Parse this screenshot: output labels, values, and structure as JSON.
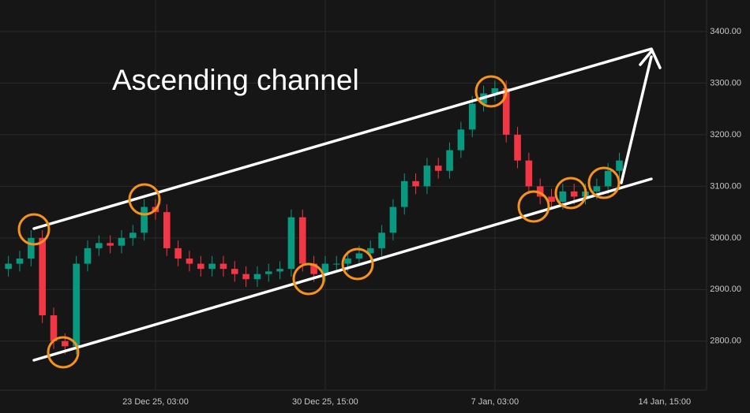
{
  "chart_data": {
    "type": "candlestick",
    "annotation": "Ascending channel",
    "categories": [
      null,
      null,
      null,
      null,
      null,
      null,
      null,
      null,
      null,
      null,
      null,
      null,
      null,
      "23 Dec 25, 03:00",
      null,
      null,
      null,
      null,
      null,
      null,
      null,
      null,
      null,
      null,
      null,
      null,
      null,
      null,
      "30 Dec 25, 15:00",
      null,
      null,
      null,
      null,
      null,
      null,
      null,
      null,
      null,
      null,
      null,
      null,
      null,
      null,
      "7 Jan, 03:00",
      null,
      null,
      null,
      null,
      null,
      null,
      null,
      null,
      null,
      null,
      null,
      null,
      null,
      null,
      "14 Jan, 15:00",
      null,
      null,
      null
    ],
    "series": {
      "up_color": "#089981",
      "down_color": "#f23645",
      "open": [
        2940,
        2950,
        2960,
        3000,
        2850,
        2800,
        2790,
        2950,
        2980,
        2990,
        2985,
        3000,
        3010,
        3060,
        3050,
        2980,
        2960,
        2950,
        2940,
        2950,
        2940,
        2930,
        2920,
        2930,
        2935,
        2940,
        3040,
        2950,
        2930,
        2950,
        2950,
        2960,
        2970,
        2980,
        3010,
        3060,
        3110,
        3100,
        3140,
        3130,
        3170,
        3210,
        3260,
        3280,
        3290,
        3200,
        3150,
        3100,
        3080,
        3070,
        3090,
        3080,
        3090,
        3100,
        3130,
        null,
        null,
        null,
        null,
        null,
        null,
        null
      ],
      "high": [
        2965,
        2975,
        3015,
        3015,
        2865,
        2815,
        2965,
        2995,
        3005,
        3005,
        3015,
        3025,
        3075,
        3075,
        3065,
        2995,
        2975,
        2965,
        2965,
        2965,
        2955,
        2945,
        2945,
        2950,
        2955,
        3055,
        3055,
        2965,
        2965,
        2965,
        2975,
        2985,
        2995,
        3025,
        3075,
        3125,
        3125,
        3155,
        3155,
        3185,
        3225,
        3275,
        3295,
        3305,
        3305,
        3215,
        3165,
        3115,
        3095,
        3105,
        3105,
        3105,
        3115,
        3145,
        3165,
        null,
        null,
        null,
        null,
        null,
        null,
        null
      ],
      "low": [
        2925,
        2935,
        2945,
        2835,
        2785,
        2775,
        2775,
        2935,
        2965,
        2970,
        2970,
        2985,
        2995,
        3035,
        2965,
        2945,
        2935,
        2925,
        2925,
        2925,
        2915,
        2905,
        2905,
        2915,
        2920,
        2925,
        2935,
        2915,
        2915,
        2935,
        2935,
        2945,
        2955,
        2965,
        2995,
        3045,
        3085,
        3085,
        3115,
        3115,
        3155,
        3195,
        3245,
        3265,
        3185,
        3135,
        3085,
        3065,
        3055,
        3055,
        3065,
        3065,
        3075,
        3085,
        3115,
        null,
        null,
        null,
        null,
        null,
        null,
        null
      ],
      "close": [
        2950,
        2960,
        3000,
        2850,
        2800,
        2790,
        2950,
        2980,
        2990,
        2985,
        3000,
        3010,
        3060,
        3050,
        2980,
        2960,
        2950,
        2940,
        2950,
        2940,
        2930,
        2920,
        2930,
        2935,
        2940,
        3040,
        2950,
        2930,
        2950,
        2950,
        2960,
        2970,
        2980,
        3010,
        3060,
        3110,
        3100,
        3140,
        3130,
        3170,
        3210,
        3260,
        3280,
        3290,
        3200,
        3150,
        3100,
        3080,
        3070,
        3090,
        3080,
        3090,
        3100,
        3130,
        3150,
        null,
        null,
        null,
        null,
        null,
        null,
        null
      ]
    },
    "ylim": [
      2705,
      3461
    ],
    "yticks": [
      {
        "value": 2800,
        "label": "2800.00"
      },
      {
        "value": 2900,
        "label": "2900.00"
      },
      {
        "value": 3000,
        "label": "3000.00"
      },
      {
        "value": 3100,
        "label": "3100.00"
      },
      {
        "value": 3200,
        "label": "3200.00"
      },
      {
        "value": 3300,
        "label": "3300.00"
      },
      {
        "value": 3400,
        "label": "3400.00"
      }
    ],
    "grid": true
  }
}
